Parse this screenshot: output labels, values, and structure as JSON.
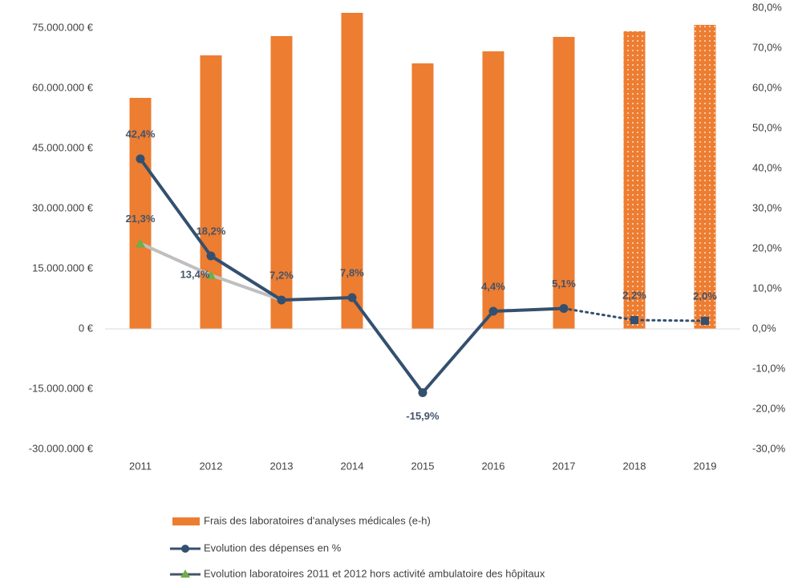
{
  "chart_data": {
    "type": "bar_line",
    "categories": [
      "2011",
      "2012",
      "2013",
      "2014",
      "2015",
      "2016",
      "2017",
      "2018",
      "2019"
    ],
    "projected": [
      false,
      false,
      false,
      false,
      false,
      false,
      false,
      true,
      true
    ],
    "series": [
      {
        "name": "Frais des laboratoires d'analyses médicales (e-h)",
        "type": "bar",
        "color": "#ed7d31",
        "values": [
          57600000,
          68200000,
          73000000,
          78800000,
          66200000,
          69200000,
          72800000,
          74200000,
          75800000
        ]
      },
      {
        "name": "Evolution des dépenses en %",
        "type": "line",
        "axis": "y2",
        "color": "#34506f",
        "marker_color": "#34506f",
        "values": [
          42.4,
          18.2,
          7.2,
          7.8,
          -15.9,
          4.4,
          5.1,
          2.2,
          2.0
        ],
        "value_labels": [
          "42,4%",
          "18,2%",
          "7,2%",
          "7,8%",
          "-15,9%",
          "4,4%",
          "5,1%",
          "2,2%",
          "2,0%"
        ]
      },
      {
        "name": "Evolution laboratoires 2011 et 2012 hors activité ambulatoire des hôpitaux",
        "type": "line",
        "axis": "y2",
        "color": "#bfbfbf",
        "marker_color": "#70ad47",
        "values": [
          21.3,
          13.4,
          7.2,
          null,
          null,
          null,
          null,
          null,
          null
        ],
        "value_labels": [
          "21,3%",
          "13,4%",
          null,
          null,
          null,
          null,
          null,
          null,
          null
        ]
      }
    ],
    "ylim": [
      -30000000,
      80000000
    ],
    "yticks": [
      {
        "value": -30000000,
        "label": "-30.000.000 €"
      },
      {
        "value": -15000000,
        "label": "-15.000.000 €"
      },
      {
        "value": 0,
        "label": "0 €"
      },
      {
        "value": 15000000,
        "label": "15.000.000 €"
      },
      {
        "value": 30000000,
        "label": "30.000.000 €"
      },
      {
        "value": 45000000,
        "label": "45.000.000 €"
      },
      {
        "value": 60000000,
        "label": "60.000.000 €"
      },
      {
        "value": 75000000,
        "label": "75.000.000 €"
      }
    ],
    "y2lim": [
      -30,
      80
    ],
    "y2ticks": [
      {
        "value": -30,
        "label": "-30,0%"
      },
      {
        "value": -20,
        "label": "-20,0%"
      },
      {
        "value": -10,
        "label": "-10,0%"
      },
      {
        "value": 0,
        "label": "0,0%"
      },
      {
        "value": 10,
        "label": "10,0%"
      },
      {
        "value": 20,
        "label": "20,0%"
      },
      {
        "value": 30,
        "label": "30,0%"
      },
      {
        "value": 40,
        "label": "40,0%"
      },
      {
        "value": 50,
        "label": "50,0%"
      },
      {
        "value": 60,
        "label": "60,0%"
      },
      {
        "value": 70,
        "label": "70,0%"
      },
      {
        "value": 80,
        "label": "80,0%"
      }
    ]
  }
}
